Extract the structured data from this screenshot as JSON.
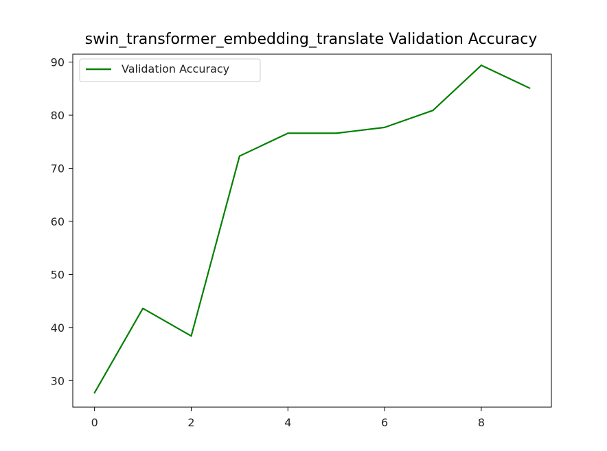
{
  "chart_data": {
    "type": "line",
    "title": "swin_transformer_embedding_translate Validation Accuracy",
    "xlabel": "",
    "ylabel": "",
    "xlim": [
      -0.45,
      9.45
    ],
    "ylim": [
      25.0,
      91.5
    ],
    "x_ticks": [
      0,
      2,
      4,
      6,
      8
    ],
    "y_ticks": [
      30,
      40,
      50,
      60,
      70,
      80,
      90
    ],
    "grid": false,
    "legend_position": "top-left",
    "series": [
      {
        "name": "Validation Accuracy",
        "color": "#008000",
        "x": [
          0,
          1,
          2,
          3,
          4,
          5,
          6,
          7,
          8,
          9
        ],
        "values": [
          27.7,
          43.6,
          38.4,
          72.3,
          76.6,
          76.6,
          77.7,
          80.9,
          89.4,
          85.1
        ]
      }
    ]
  }
}
